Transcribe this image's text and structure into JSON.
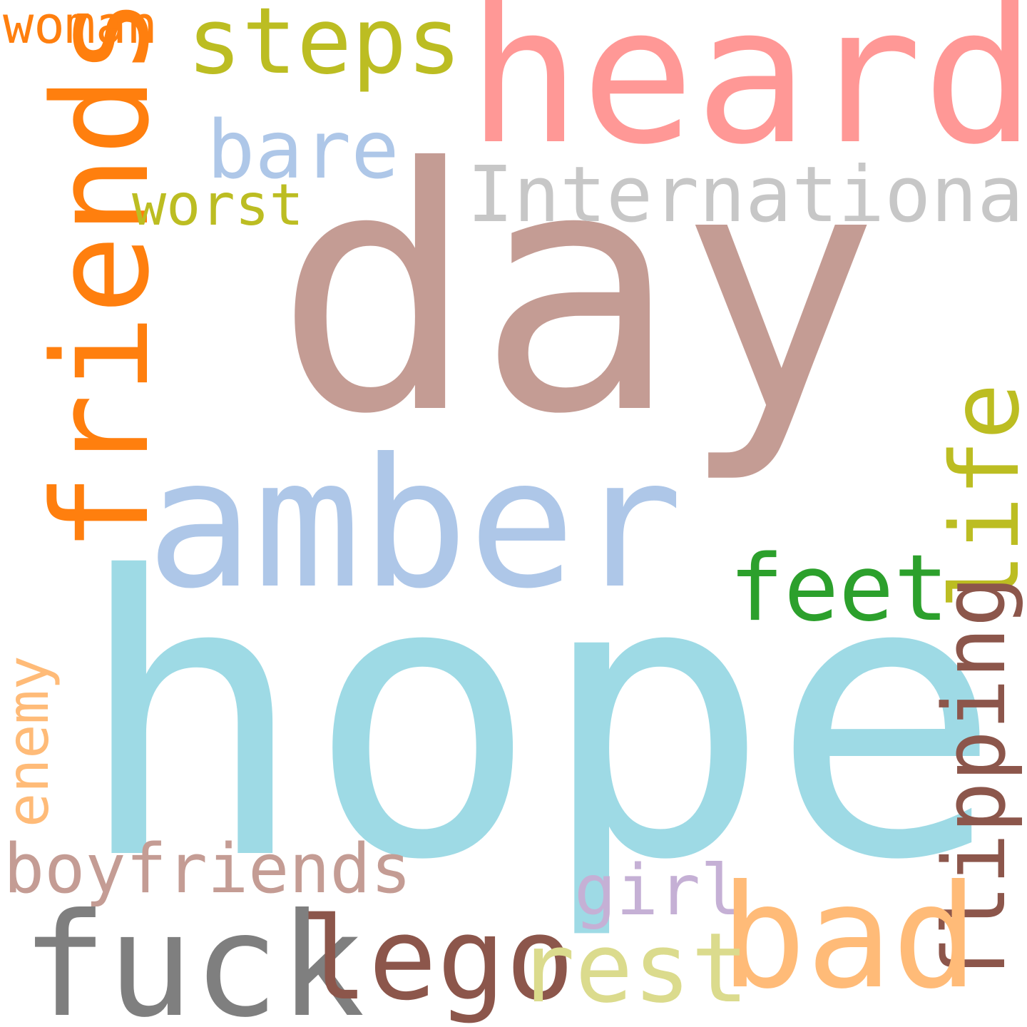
{
  "word_cloud": {
    "words": [
      {
        "id": "day",
        "text": "day",
        "color": "#c49c94",
        "orientation": "horizontal"
      },
      {
        "id": "hope",
        "text": "hope",
        "color": "#9edae5",
        "orientation": "horizontal"
      },
      {
        "id": "heard",
        "text": "heard",
        "color": "#ff9896",
        "orientation": "horizontal"
      },
      {
        "id": "amber",
        "text": "amber",
        "color": "#aec7e8",
        "orientation": "horizontal"
      },
      {
        "id": "friends",
        "text": "friends",
        "color": "#ff7f0e",
        "orientation": "vertical"
      },
      {
        "id": "international",
        "text": "International",
        "color": "#c7c7c7",
        "orientation": "horizontal"
      },
      {
        "id": "steps",
        "text": "steps",
        "color": "#bcbd22",
        "orientation": "horizontal"
      },
      {
        "id": "bare",
        "text": "bare",
        "color": "#aec7e8",
        "orientation": "horizontal"
      },
      {
        "id": "worst",
        "text": "worst",
        "color": "#bcbd22",
        "orientation": "horizontal"
      },
      {
        "id": "woman",
        "text": "woman",
        "color": "#ff7f0e",
        "orientation": "horizontal"
      },
      {
        "id": "feet",
        "text": "feet",
        "color": "#2ca02c",
        "orientation": "horizontal"
      },
      {
        "id": "life",
        "text": "life",
        "color": "#bcbd22",
        "orientation": "vertical"
      },
      {
        "id": "flipping",
        "text": "flipping",
        "color": "#8c564b",
        "orientation": "vertical"
      },
      {
        "id": "enemy",
        "text": "enemy",
        "color": "#ffbb78",
        "orientation": "vertical"
      },
      {
        "id": "boyfriends",
        "text": "boyfriends",
        "color": "#c49c94",
        "orientation": "horizontal"
      },
      {
        "id": "girl",
        "text": "girl",
        "color": "#c5b0d5",
        "orientation": "horizontal"
      },
      {
        "id": "bad",
        "text": "bad",
        "color": "#ffbb78",
        "orientation": "horizontal"
      },
      {
        "id": "fuck",
        "text": "fuck",
        "color": "#7f7f7f",
        "orientation": "horizontal"
      },
      {
        "id": "lego",
        "text": "lego",
        "color": "#8c564b",
        "orientation": "horizontal"
      },
      {
        "id": "rest",
        "text": "rest",
        "color": "#dbdb8d",
        "orientation": "horizontal"
      }
    ]
  }
}
